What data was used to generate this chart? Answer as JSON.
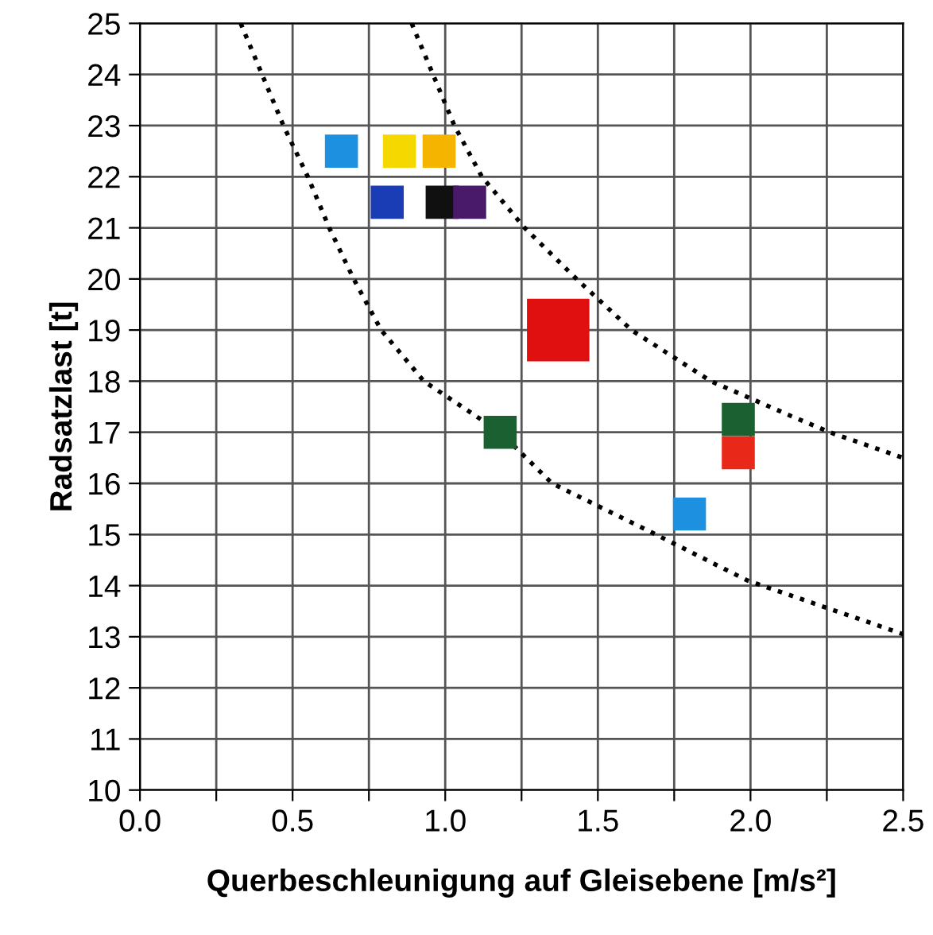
{
  "chart_data": {
    "type": "scatter",
    "xlabel": "Querbeschleunigung auf Gleisebene [m/s²]",
    "ylabel": "Radsatzlast [t]",
    "xlim": [
      0,
      2.5
    ],
    "ylim": [
      10,
      25
    ],
    "xticks": [
      {
        "value": 0,
        "label": "0.0"
      },
      {
        "value": 0.25,
        "label": null
      },
      {
        "value": 0.5,
        "label": "0.5"
      },
      {
        "value": 0.75,
        "label": null
      },
      {
        "value": 1,
        "label": "1.0"
      },
      {
        "value": 1.25,
        "label": null
      },
      {
        "value": 1.5,
        "label": "1.5"
      },
      {
        "value": 1.75,
        "label": null
      },
      {
        "value": 2,
        "label": "2.0"
      },
      {
        "value": 2.25,
        "label": null
      },
      {
        "value": 2.5,
        "label": "2.5"
      }
    ],
    "yticks": [
      10,
      11,
      12,
      13,
      14,
      15,
      16,
      17,
      18,
      19,
      20,
      21,
      22,
      23,
      24,
      25
    ],
    "grid": true,
    "legend": false,
    "marker": "square",
    "series": [
      {
        "x": [
          0.66,
          0.85,
          0.98,
          0.81,
          0.99,
          1.08,
          1.37,
          1.18,
          1.96,
          1.96,
          1.8
        ],
        "values": [
          22.5,
          22.5,
          22.5,
          21.5,
          21.5,
          21.5,
          19.0,
          17.0,
          17.25,
          16.6,
          15.4
        ],
        "colors": [
          "#1e90e0",
          "#f5d800",
          "#f5b400",
          "#1a3cb4",
          "#101010",
          "#4a1a6a",
          "#e01010",
          "#1a6030",
          "#1a6030",
          "#e82818",
          "#1e90e0"
        ],
        "sizes": [
          0.28,
          0.28,
          0.28,
          0.28,
          0.28,
          0.28,
          1,
          0.28,
          0.28,
          0.28,
          0.28
        ]
      },
      {
        "type": "line",
        "color": "#000000",
        "line_style": "dotted",
        "marker": "none",
        "x": [
          0.33,
          0.47,
          0.55,
          0.62,
          0.7,
          0.79,
          0.93,
          1.18,
          1.35,
          1.69,
          1.99,
          2.5
        ],
        "values": [
          25,
          23,
          22,
          21,
          20,
          19,
          18,
          17,
          16,
          15,
          14.1,
          13.05
        ]
      },
      {
        "type": "line",
        "color": "#000000",
        "line_style": "dotted",
        "marker": "none",
        "x": [
          0.89,
          0.96,
          1.03,
          1.12,
          1.26,
          1.43,
          1.61,
          1.87,
          2.14,
          2.26,
          2.5
        ],
        "values": [
          25,
          24,
          23,
          22,
          21,
          20,
          19,
          18,
          17.3,
          17,
          16.5
        ]
      }
    ]
  }
}
